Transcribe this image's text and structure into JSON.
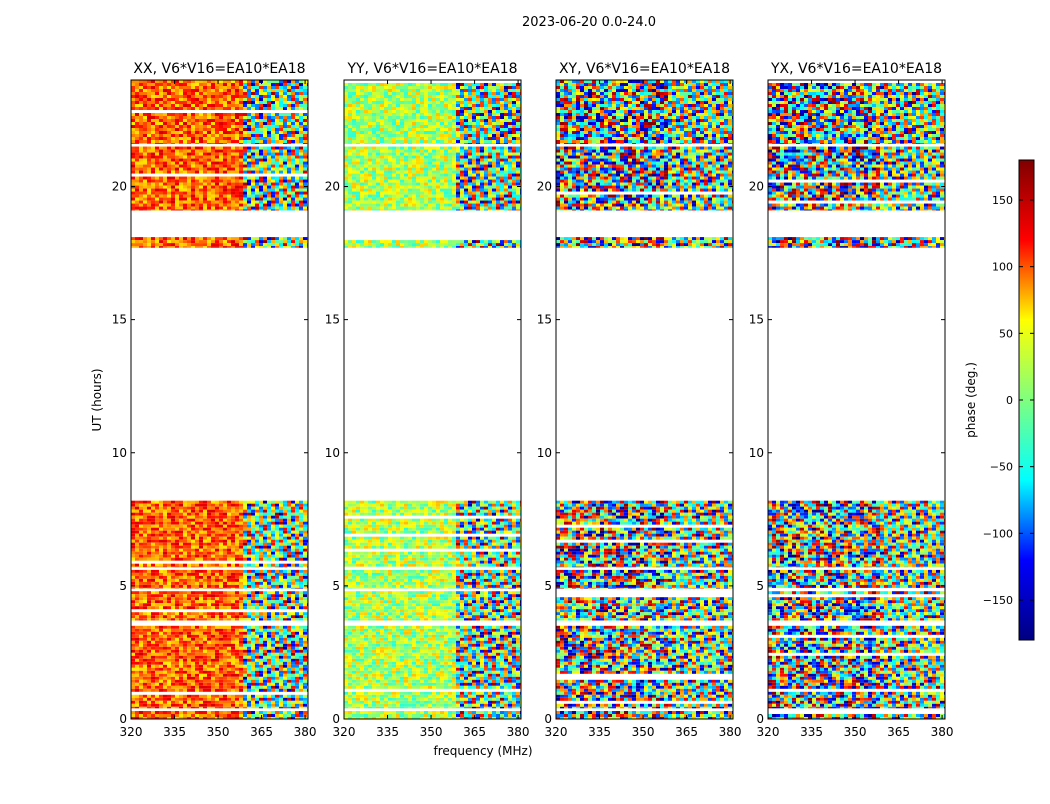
{
  "chart_data": {
    "type": "heatmap",
    "title": "2023-06-20 0.0-24.0",
    "xlabel": "frequency (MHz)",
    "ylabel": "UT (hours)",
    "xlim": [
      320,
      381
    ],
    "ylim": [
      0,
      24
    ],
    "x_ticks": [
      "320",
      "335",
      "350",
      "365",
      "380"
    ],
    "x_tick_values": [
      320,
      335,
      350,
      365,
      380
    ],
    "y_ticks": [
      "0",
      "5",
      "10",
      "15",
      "20"
    ],
    "y_tick_values": [
      0,
      5,
      10,
      15,
      20
    ],
    "panels": [
      {
        "id": "xx",
        "title": "XX, V6*V16=EA10*EA18"
      },
      {
        "id": "yy",
        "title": "YY, V6*V16=EA10*EA18"
      },
      {
        "id": "xy",
        "title": "XY, V6*V16=EA10*EA18"
      },
      {
        "id": "yx",
        "title": "YX, V6*V16=EA10*EA18"
      }
    ],
    "data_ut_ranges": [
      [
        0.0,
        0.3
      ],
      [
        0.4,
        3.5
      ],
      [
        3.7,
        4.8
      ],
      [
        4.9,
        5.6
      ],
      [
        5.7,
        8.2
      ],
      [
        17.7,
        18.1
      ],
      [
        19.1,
        21.5
      ],
      [
        21.6,
        24.0
      ]
    ],
    "colorbar": {
      "label": "phase (deg.)",
      "range": [
        -180,
        180
      ],
      "ticks": [
        "150",
        "100",
        "50",
        "0",
        "−50",
        "−100",
        "−150"
      ],
      "tick_values": [
        150,
        100,
        50,
        0,
        -50,
        -100,
        -150
      ],
      "colormap": "jet",
      "colors": [
        "#000080",
        "#0000ff",
        "#00ffff",
        "#7fff7f",
        "#ffff00",
        "#ff0000",
        "#800000"
      ]
    }
  }
}
